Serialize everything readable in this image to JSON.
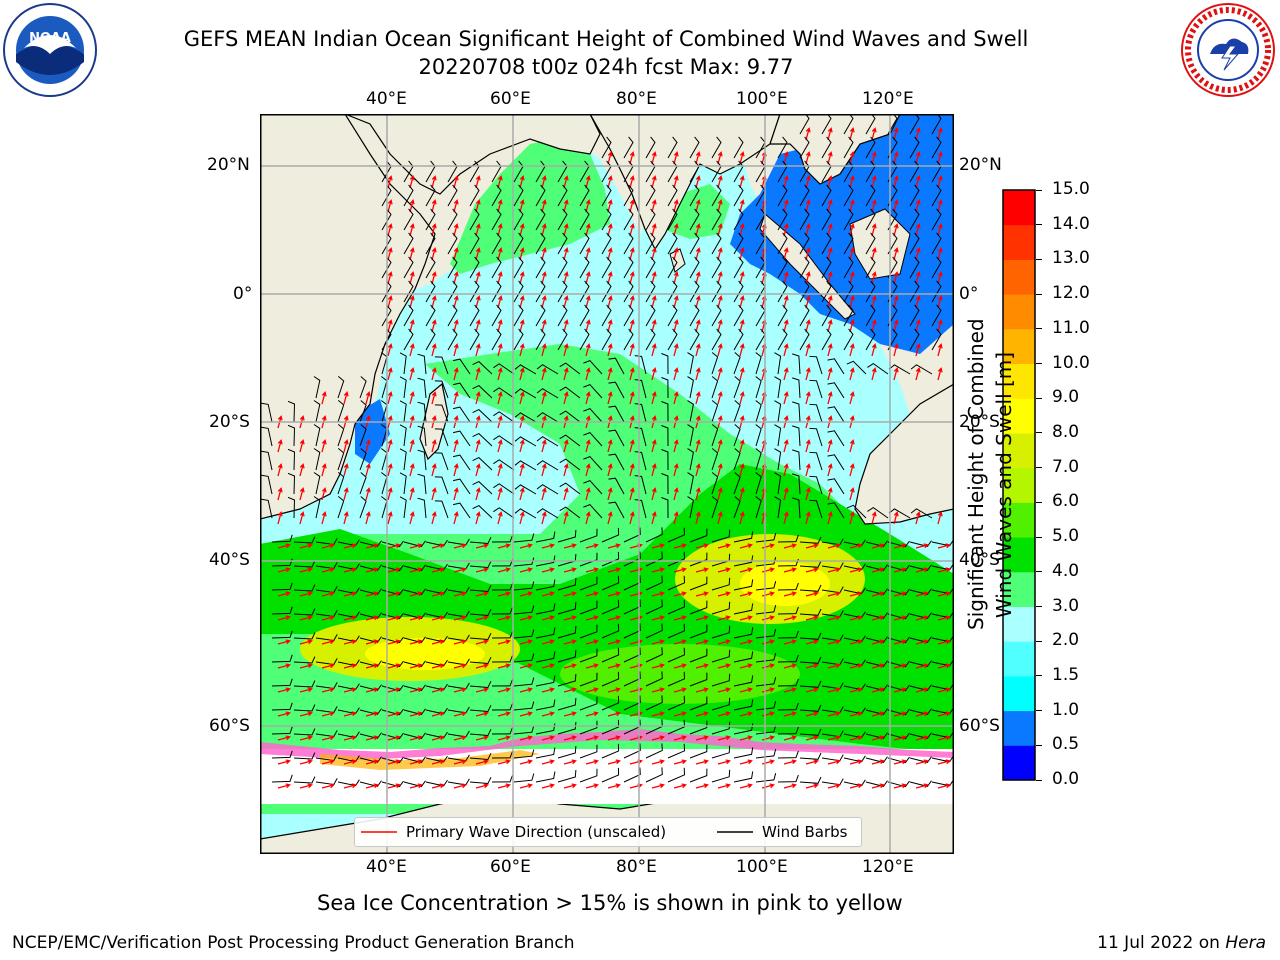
{
  "title": {
    "line1": "GEFS MEAN Indian Ocean Significant Height of Combined Wind Waves and Swell",
    "line2": "20220708 t00z 024h fcst   Max: 9.77"
  },
  "map": {
    "region": "Indian Ocean",
    "lon_ticks_top": [
      "40°E",
      "60°E",
      "80°E",
      "100°E",
      "120°E"
    ],
    "lon_ticks_bottom": [
      "40°E",
      "60°E",
      "80°E",
      "100°E",
      "120°E"
    ],
    "lat_ticks_left": [
      "20°N",
      "0°",
      "20°S",
      "40°S",
      "60°S"
    ],
    "lat_ticks_right": [
      "20°N",
      "0°",
      "20°S",
      "40°S",
      "60°S"
    ],
    "lon_range": [
      20,
      129
    ],
    "lat_range": [
      -72,
      28
    ],
    "gridlines": true,
    "land_color": "#efedde",
    "max_value": "9.77"
  },
  "legend": {
    "wave_dir_label": "Primary Wave Direction (unscaled)",
    "wind_barbs_label": "Wind Barbs",
    "wave_dir_color": "#ff0000",
    "wind_barbs_color": "#000000"
  },
  "colorbar": {
    "label_line1": "Significant Height of Combined",
    "label_line2": "Wind Waves and Swell [m]",
    "ticks": [
      "0.0",
      "0.5",
      "1.0",
      "1.5",
      "2.0",
      "3.0",
      "4.0",
      "5.0",
      "6.0",
      "7.0",
      "8.0",
      "9.0",
      "10.0",
      "11.0",
      "12.0",
      "13.0",
      "14.0",
      "15.0"
    ],
    "colors": [
      "#0000ff",
      "#0a78ff",
      "#00ffff",
      "#50ffff",
      "#aaffff",
      "#50ff78",
      "#00e100",
      "#50f000",
      "#b4f500",
      "#d7f000",
      "#ffff00",
      "#ffe600",
      "#ffb400",
      "#ff8c00",
      "#ff6400",
      "#ff3200",
      "#ff0000"
    ]
  },
  "notes": {
    "sea_ice": "Sea Ice Concentration > 15% is shown in pink to yellow"
  },
  "footer": {
    "left": "NCEP/EMC/Verification Post Processing Product Generation Branch",
    "date": "11 Jul 2022 on ",
    "host": "Hera"
  },
  "logos": {
    "left": "NOAA",
    "right": "NATIONAL WEATHER SERVICE"
  }
}
